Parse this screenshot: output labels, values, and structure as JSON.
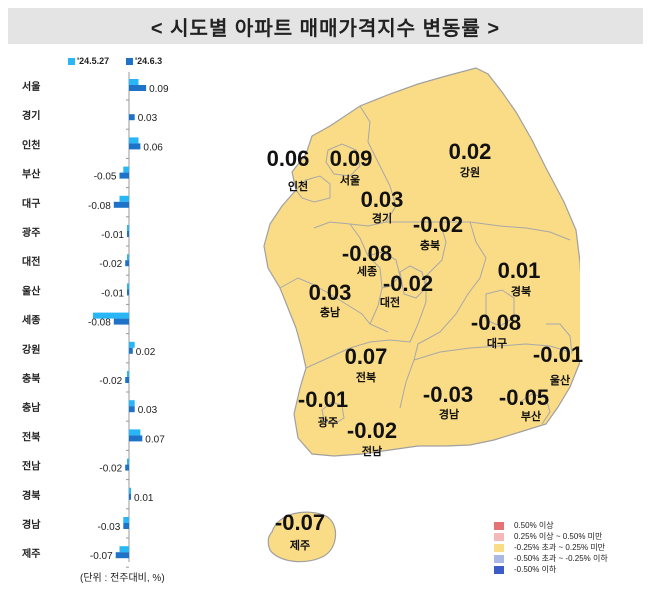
{
  "title": "< 시도별 아파트 매매가격지수 변동률 >",
  "unit_note": "(단위 : 전주대비, %)",
  "colors": {
    "prev": "#29b6f6",
    "curr": "#1e73c8",
    "land": "#fadb86",
    "land_stroke": "#a8a8a8",
    "sea": "#ffffff"
  },
  "chart_data": {
    "type": "bar",
    "orientation": "horizontal",
    "categories": [
      "서울",
      "경기",
      "인천",
      "부산",
      "대구",
      "광주",
      "대전",
      "울산",
      "세종",
      "강원",
      "충북",
      "충남",
      "전북",
      "전남",
      "경북",
      "경남",
      "제주"
    ],
    "series": [
      {
        "name": "'24.5.27",
        "values": [
          0.05,
          0.0,
          0.05,
          -0.03,
          -0.05,
          -0.01,
          -0.01,
          -0.01,
          -0.19,
          0.03,
          -0.01,
          0.03,
          0.06,
          -0.01,
          0.01,
          -0.03,
          -0.05
        ]
      },
      {
        "name": "'24.6.3",
        "values": [
          0.09,
          0.03,
          0.06,
          -0.05,
          -0.08,
          -0.01,
          -0.02,
          -0.01,
          -0.08,
          0.02,
          -0.02,
          0.03,
          0.07,
          -0.02,
          0.01,
          -0.03,
          -0.07
        ]
      }
    ],
    "labels": [
      "0.09",
      "0.03",
      "0.06",
      "-0.05",
      "-0.08",
      "-0.01",
      "-0.02",
      "-0.01",
      "-0.08",
      "0.02",
      "-0.02",
      "0.03",
      "0.07",
      "-0.02",
      "0.01",
      "-0.03",
      "-0.07"
    ]
  },
  "map": {
    "regions": [
      {
        "name": "인천",
        "value": "0.06"
      },
      {
        "name": "서울",
        "value": "0.09"
      },
      {
        "name": "강원",
        "value": "0.02"
      },
      {
        "name": "경기",
        "value": "0.03"
      },
      {
        "name": "충북",
        "value": "-0.02"
      },
      {
        "name": "세종",
        "value": "-0.08"
      },
      {
        "name": "대전",
        "value": "-0.02"
      },
      {
        "name": "충남",
        "value": "0.03"
      },
      {
        "name": "경북",
        "value": "0.01"
      },
      {
        "name": "대구",
        "value": "-0.08"
      },
      {
        "name": "울산",
        "value": "-0.01"
      },
      {
        "name": "전북",
        "value": "0.07"
      },
      {
        "name": "광주",
        "value": "-0.01"
      },
      {
        "name": "경남",
        "value": "-0.03"
      },
      {
        "name": "부산",
        "value": "-0.05"
      },
      {
        "name": "전남",
        "value": "-0.02"
      },
      {
        "name": "제주",
        "value": "-0.07"
      }
    ],
    "legend": [
      {
        "label": "0.50% 이상",
        "color": "#e57373"
      },
      {
        "label": "0.25% 이상 ~ 0.50% 미만",
        "color": "#f4b8b8"
      },
      {
        "label": "-0.25% 초과 ~ 0.25% 미만",
        "color": "#fadb86"
      },
      {
        "label": "-0.50% 초과 ~ -0.25% 이하",
        "color": "#aab8e6"
      },
      {
        "label": "-0.50% 이하",
        "color": "#3c5cc8"
      }
    ]
  }
}
